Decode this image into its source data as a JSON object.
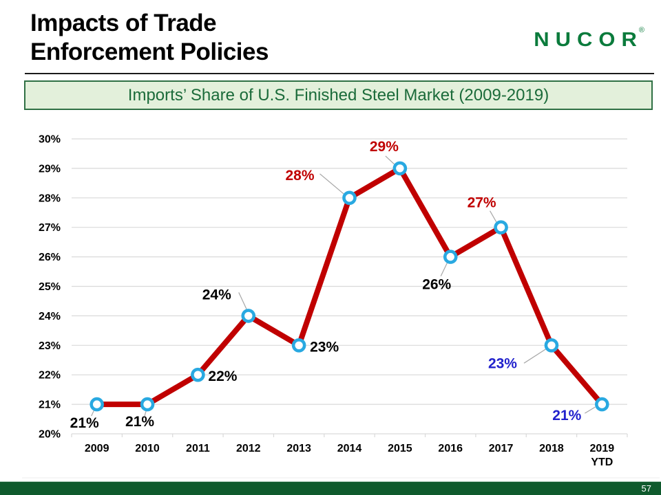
{
  "header": {
    "title_line1": "Impacts of Trade",
    "title_line2": "Enforcement Policies",
    "logo_text": "NUCOR",
    "logo_reg": "®"
  },
  "banner": {
    "text": "Imports’ Share of U.S. Finished Steel Market (2009-2019)"
  },
  "footer": {
    "page_number": "57"
  },
  "chart_data": {
    "type": "line",
    "title": "Imports’ Share of U.S. Finished Steel Market (2009-2019)",
    "categories": [
      "2009",
      "2010",
      "2011",
      "2012",
      "2013",
      "2014",
      "2015",
      "2016",
      "2017",
      "2018",
      "2019"
    ],
    "values": [
      21,
      21,
      22,
      24,
      23,
      28,
      29,
      26,
      27,
      23,
      21
    ],
    "ylim": [
      20,
      30
    ],
    "y_ticks": [
      "30%",
      "29%",
      "28%",
      "27%",
      "26%",
      "25%",
      "24%",
      "23%",
      "22%",
      "21%",
      "20%"
    ],
    "xlabel": "",
    "ylabel": "",
    "grid": "horizontal",
    "legend": "none",
    "colors": {
      "line": "#C00000",
      "marker": "#29A9E1",
      "marker_fill": "#FFFFFF",
      "grid": "#D9D9D9",
      "leader": "#A6A6A6",
      "label_black": "#000000",
      "label_red": "#C00000",
      "label_blue": "#2121CC",
      "axis_text": "#000000"
    },
    "points": [
      {
        "category": "2009",
        "value": 21,
        "label": "21%",
        "label_color": "black",
        "label_offset": [
          -18,
          27
        ],
        "leader": [
          -8,
          17,
          -1,
          2
        ]
      },
      {
        "category": "2010",
        "value": 21,
        "label": "21%",
        "label_color": "black",
        "label_offset": [
          -11,
          25
        ],
        "leader": [
          -4,
          17,
          0,
          3
        ]
      },
      {
        "category": "2011",
        "value": 22,
        "label": "22%",
        "label_color": "black",
        "label_offset": [
          36,
          2
        ],
        "leader": null
      },
      {
        "category": "2012",
        "value": 24,
        "label": "24%",
        "label_color": "black",
        "label_offset": [
          -46,
          -31
        ],
        "leader": [
          -14,
          -34,
          -1,
          -6
        ]
      },
      {
        "category": "2013",
        "value": 23,
        "label": "23%",
        "label_color": "black",
        "label_offset": [
          37,
          2
        ],
        "leader": null
      },
      {
        "category": "2014",
        "value": 28,
        "label": "28%",
        "label_color": "red",
        "label_offset": [
          -72,
          -33
        ],
        "leader": [
          -43,
          -35,
          -5,
          -3
        ]
      },
      {
        "category": "2015",
        "value": 29,
        "label": "29%",
        "label_color": "red",
        "label_offset": [
          -23,
          -32
        ],
        "leader": [
          -21,
          -18,
          -5,
          -3
        ]
      },
      {
        "category": "2016",
        "value": 26,
        "label": "26%",
        "label_color": "black",
        "label_offset": [
          -20,
          40
        ],
        "leader": [
          -14,
          28,
          -2,
          3
        ]
      },
      {
        "category": "2017",
        "value": 27,
        "label": "27%",
        "label_color": "red",
        "label_offset": [
          -28,
          -36
        ],
        "leader": [
          -16,
          -24,
          -4,
          -3
        ]
      },
      {
        "category": "2018",
        "value": 23,
        "label": "23%",
        "label_color": "blue",
        "label_offset": [
          -71,
          26
        ],
        "leader": [
          -40,
          26,
          -6,
          4
        ]
      },
      {
        "category": "2019",
        "value": 21,
        "label": "21%",
        "label_color": "blue",
        "label_offset": [
          -51,
          16
        ],
        "leader": [
          -25,
          13,
          -10,
          4
        ],
        "category_line2": "YTD"
      }
    ]
  }
}
